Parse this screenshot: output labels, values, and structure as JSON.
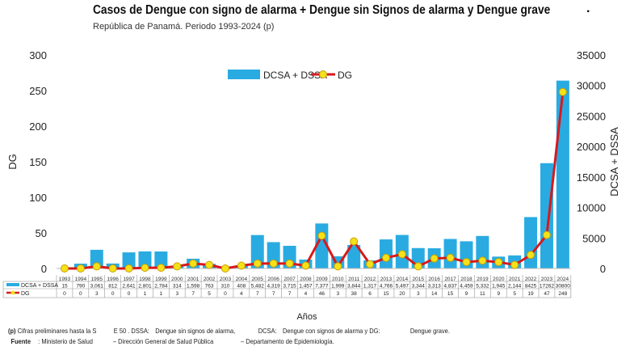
{
  "title": "Casos de Dengue con signo de alarma + Dengue sin Signos de alarma y Dengue grave",
  "subtitle": "República de Panamá. Periodo 1993-2024 (p)",
  "title_mark": ".",
  "chart_data": {
    "type": "bar+line",
    "xlabel": "Años",
    "ylabel_left": "DG",
    "ylabel_right": "DCSA + DSSA",
    "ylim_left": [
      0,
      300
    ],
    "yticks_left": [
      0,
      50,
      100,
      150,
      200,
      250,
      300
    ],
    "ylim_right": [
      0,
      35000
    ],
    "yticks_right": [
      0,
      5000,
      10000,
      15000,
      20000,
      25000,
      30000,
      35000
    ],
    "legend_position": "top-center",
    "categories": [
      "1993",
      "1994",
      "1995",
      "1996",
      "1997",
      "1998",
      "1999",
      "2000",
      "2001",
      "2002",
      "2003",
      "2004",
      "2005",
      "2006",
      "2007",
      "2008",
      "2009",
      "2010",
      "2011",
      "2012",
      "2013",
      "2014",
      "2015",
      "2016",
      "2017",
      "2018",
      "2019",
      "2020",
      "2021",
      "2022",
      "2023",
      "2024"
    ],
    "series": [
      {
        "name": "DCSA + DSSA",
        "type": "bar",
        "axis": "right",
        "color": "#29abe2",
        "values": [
          15,
          790,
          3061,
          812,
          2641,
          2801,
          2784,
          314,
          1598,
          763,
          310,
          408,
          5482,
          4319,
          3715,
          1457,
          7377,
          1999,
          3844,
          1317,
          4766,
          5497,
          3344,
          3313,
          4837,
          4459,
          5332,
          1945,
          2144,
          8425,
          17262,
          30800
        ],
        "labels": [
          "15",
          "790",
          "3,061",
          "812",
          "2,641",
          "2,801",
          "2,784",
          "314",
          "1,598",
          "763",
          "310",
          "408",
          "5,482",
          "4,319",
          "3,715",
          "1,457",
          "7,377",
          "1,999",
          "3,844",
          "1,317",
          "4,766",
          "5,497",
          "3,344",
          "3,313",
          "4,837",
          "4,459",
          "5,332",
          "1,945",
          "2,144",
          "8425",
          "17262",
          "30800"
        ]
      },
      {
        "name": "DG",
        "type": "line",
        "axis": "left",
        "color": "#d7191c",
        "marker_color": "#f5e11a",
        "values": [
          0,
          0,
          3,
          0,
          0,
          1,
          1,
          3,
          7,
          5,
          0,
          4,
          7,
          7,
          7,
          4,
          46,
          3,
          38,
          6,
          15,
          20,
          3,
          14,
          15,
          9,
          11,
          9,
          5,
          19,
          47,
          248
        ]
      }
    ]
  },
  "footnote": {
    "p_label": "(p)",
    "p_text": "Cifras preliminares hasta la S",
    "se": "E 50 .",
    "dssa": "DSSA:",
    "dssa_def": "Dengue sin signos de alarma,",
    "dcsa": "DCSA:",
    "dcsa_def": "Dengue con signos de alarma y DG:",
    "dg_def": "Dengue grave.",
    "fuente_label": "Fuente",
    "fuente_1": ": Ministerio de Salud",
    "fuente_2": "– Dirección General de Salud Pública",
    "fuente_3": "– Departamento de Epidemiología."
  }
}
